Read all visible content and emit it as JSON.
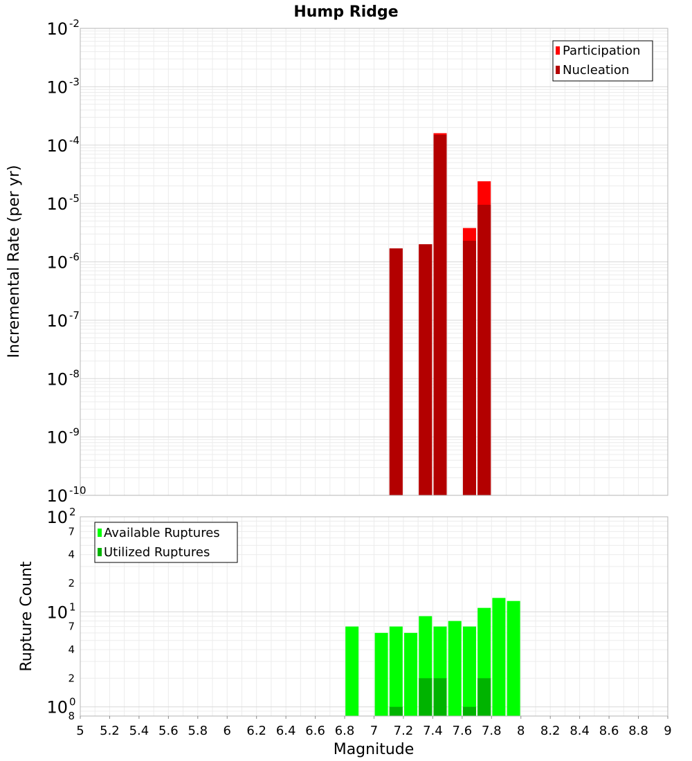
{
  "chart_data": [
    {
      "type": "bar",
      "title": "Hump Ridge",
      "xlabel": "",
      "ylabel": "Incremental Rate (per yr)",
      "yscale": "log",
      "ylim": [
        1e-10,
        0.01
      ],
      "xlim": [
        5,
        9
      ],
      "grid": true,
      "legend_position": "top-right",
      "y_ticks": [
        {
          "base": "10",
          "exp": "-10"
        },
        {
          "base": "10",
          "exp": "-9"
        },
        {
          "base": "10",
          "exp": "-8"
        },
        {
          "base": "10",
          "exp": "-7"
        },
        {
          "base": "10",
          "exp": "-6"
        },
        {
          "base": "10",
          "exp": "-5"
        },
        {
          "base": "10",
          "exp": "-4"
        },
        {
          "base": "10",
          "exp": "-3"
        },
        {
          "base": "10",
          "exp": "-2"
        }
      ],
      "series": [
        {
          "name": "Participation",
          "color": "#ff0000",
          "points": [
            {
              "x": 7.15,
              "y": 1.7e-06
            },
            {
              "x": 7.35,
              "y": 2e-06
            },
            {
              "x": 7.45,
              "y": 0.00016
            },
            {
              "x": 7.65,
              "y": 3.8e-06
            },
            {
              "x": 7.75,
              "y": 2.4e-05
            }
          ]
        },
        {
          "name": "Nucleation",
          "color": "#b30000",
          "points": [
            {
              "x": 7.15,
              "y": 1.7e-06
            },
            {
              "x": 7.35,
              "y": 2e-06
            },
            {
              "x": 7.45,
              "y": 0.00015
            },
            {
              "x": 7.65,
              "y": 2.3e-06
            },
            {
              "x": 7.75,
              "y": 9.5e-06
            }
          ]
        }
      ]
    },
    {
      "type": "bar",
      "title": "",
      "xlabel": "Magnitude",
      "ylabel": "Rupture Count",
      "yscale": "log",
      "ylim": [
        0.8,
        100
      ],
      "xlim": [
        5,
        9
      ],
      "grid": true,
      "legend_position": "top-left",
      "x_ticks": [
        "5",
        "5.2",
        "5.4",
        "5.6",
        "5.8",
        "6",
        "6.2",
        "6.4",
        "6.6",
        "6.8",
        "7",
        "7.2",
        "7.4",
        "7.6",
        "7.8",
        "8",
        "8.2",
        "8.4",
        "8.6",
        "8.8",
        "9"
      ],
      "y_major_ticks": [
        {
          "value": 1,
          "base": "10",
          "exp": "0"
        },
        {
          "value": 10,
          "base": "10",
          "exp": "1"
        },
        {
          "value": 100,
          "base": "10",
          "exp": "2"
        }
      ],
      "y_minor_ticks": [
        {
          "value": 0.8,
          "label": "8"
        },
        {
          "value": 2,
          "label": "2"
        },
        {
          "value": 4,
          "label": "4"
        },
        {
          "value": 7,
          "label": "7"
        },
        {
          "value": 20,
          "label": "2"
        },
        {
          "value": 40,
          "label": "4"
        },
        {
          "value": 70,
          "label": "7"
        }
      ],
      "series": [
        {
          "name": "Available Ruptures",
          "color": "#00ff00",
          "points": [
            {
              "x": 6.85,
              "y": 7
            },
            {
              "x": 7.05,
              "y": 6
            },
            {
              "x": 7.15,
              "y": 7
            },
            {
              "x": 7.25,
              "y": 6
            },
            {
              "x": 7.35,
              "y": 9
            },
            {
              "x": 7.45,
              "y": 7
            },
            {
              "x": 7.55,
              "y": 8
            },
            {
              "x": 7.65,
              "y": 7
            },
            {
              "x": 7.75,
              "y": 11
            },
            {
              "x": 7.85,
              "y": 14
            },
            {
              "x": 7.95,
              "y": 13
            }
          ]
        },
        {
          "name": "Utilized Ruptures",
          "color": "#00b300",
          "points": [
            {
              "x": 7.15,
              "y": 1
            },
            {
              "x": 7.35,
              "y": 2
            },
            {
              "x": 7.45,
              "y": 2
            },
            {
              "x": 7.65,
              "y": 1
            },
            {
              "x": 7.75,
              "y": 2
            }
          ]
        }
      ]
    }
  ]
}
